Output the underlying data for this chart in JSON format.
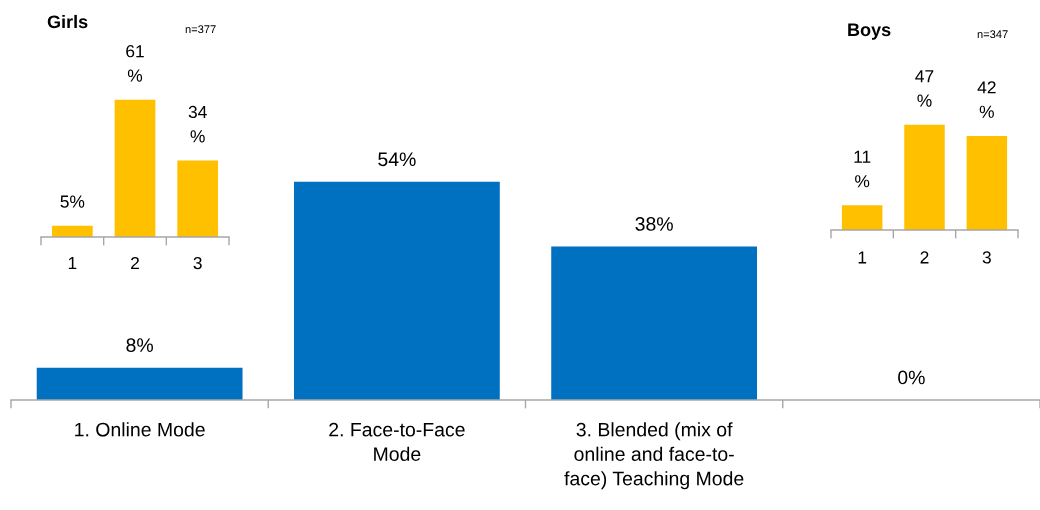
{
  "chart_data": [
    {
      "type": "bar",
      "title": "Girls",
      "subtitle": "n=377",
      "categories": [
        "1",
        "2",
        "3"
      ],
      "values": [
        5,
        61,
        34
      ],
      "value_labels": [
        "5%",
        "61\n%",
        "34\n%"
      ],
      "color": "#ffc000",
      "tick_labels": "x"
    },
    {
      "type": "bar",
      "title": "Boys",
      "subtitle": "n=347",
      "categories": [
        "1",
        "2",
        "3"
      ],
      "values": [
        11,
        47,
        42
      ],
      "value_labels": [
        "11\n%",
        "47\n%",
        "42\n%"
      ],
      "color": "#ffc000",
      "tick_labels": "x"
    },
    {
      "type": "bar",
      "categories": [
        "1. Online Mode",
        "2. Face-to-Face\nMode",
        "3. Blended (mix of\nonline and face-to-\nface) Teaching Mode",
        null
      ],
      "values": [
        8,
        54,
        38,
        0
      ],
      "value_labels": [
        "8%",
        "54%",
        "38%",
        "0%"
      ],
      "color": "#0070c0",
      "tick_labels": "x"
    }
  ]
}
